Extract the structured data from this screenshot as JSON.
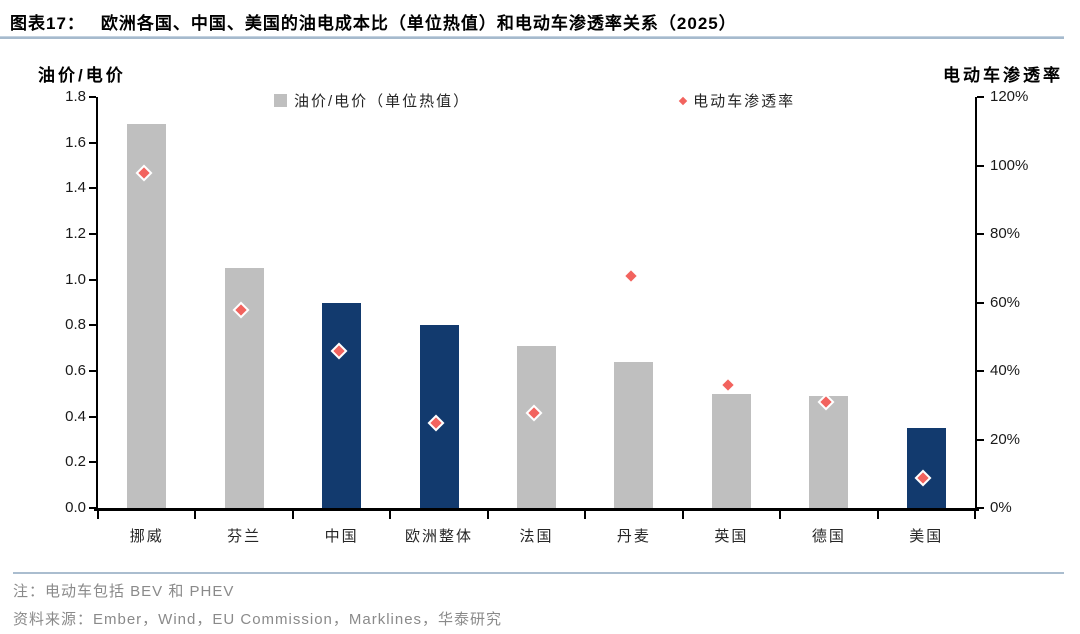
{
  "title": {
    "prefix": "图表17：",
    "text": "欧洲各国、中国、美国的油电成本比（单位热值）和电动车渗透率关系（2025）"
  },
  "axes": {
    "left_title": "油价/电价",
    "right_title": "电动车渗透率"
  },
  "legend": {
    "bar_label": "油价/电价（单位热值）",
    "scatter_label": "电动车渗透率"
  },
  "notes": {
    "note": "注：电动车包括 BEV 和 PHEV",
    "source": "资料来源：Ember，Wind，EU Commission，Marklines，华泰研究"
  },
  "colors": {
    "bar_gray": "#bfbfbf",
    "bar_navy": "#123a6e",
    "diamond_red": "#f2635e",
    "axis_black": "#000000",
    "title_rule_blue": "#a6bacd",
    "footer_rule_blue": "#aabdcf",
    "note_gray": "#8a8a8a"
  },
  "chart_data": {
    "type": "bar",
    "combo": "bar + diamond scatter, dual axis",
    "categories": [
      "挪威",
      "芬兰",
      "中国",
      "欧洲整体",
      "法国",
      "丹麦",
      "英国",
      "德国",
      "美国"
    ],
    "series": [
      {
        "name": "油价/电价（单位热值）",
        "type": "bar",
        "axis": "left",
        "values": [
          1.68,
          1.05,
          0.9,
          0.8,
          0.71,
          0.64,
          0.5,
          0.49,
          0.35
        ],
        "colors": [
          "#bfbfbf",
          "#bfbfbf",
          "#123a6e",
          "#123a6e",
          "#bfbfbf",
          "#bfbfbf",
          "#bfbfbf",
          "#bfbfbf",
          "#123a6e"
        ]
      },
      {
        "name": "电动车渗透率",
        "type": "scatter",
        "marker": "diamond",
        "axis": "right",
        "values_pct": [
          97,
          57,
          45,
          24,
          27,
          67,
          35,
          30,
          8
        ]
      }
    ],
    "left_axis": {
      "title": "油价/电价",
      "min": 0,
      "max": 1.8,
      "step": 0.2,
      "tick_labels": [
        "0.0",
        "0.2",
        "0.4",
        "0.6",
        "0.8",
        "1.0",
        "1.2",
        "1.4",
        "1.6",
        "1.8"
      ]
    },
    "right_axis": {
      "title": "电动车渗透率",
      "min": 0,
      "max": 120,
      "step": 20,
      "tick_labels": [
        "0%",
        "20%",
        "40%",
        "60%",
        "80%",
        "100%",
        "120%"
      ]
    },
    "grid": false,
    "legend_position": "top-center"
  }
}
